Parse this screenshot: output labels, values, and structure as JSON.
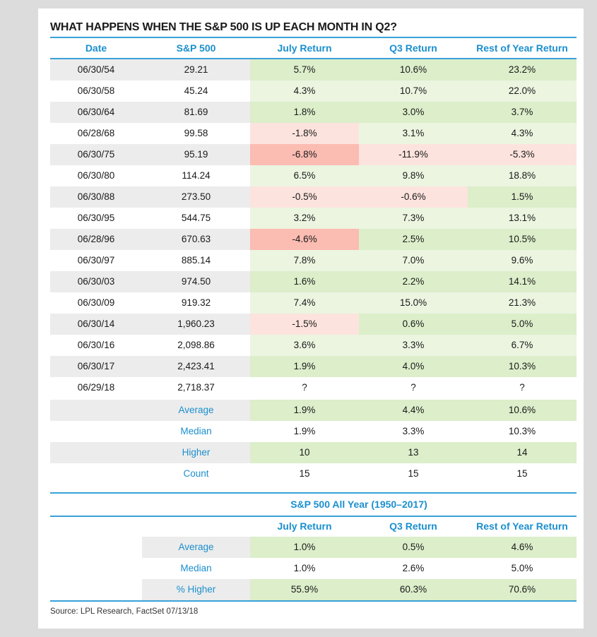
{
  "title": "WHAT HAPPENS WHEN THE S&P 500 IS UP EACH MONTH IN Q2?",
  "headers": [
    "Date",
    "S&P 500",
    "July Return",
    "Q3 Return",
    "Rest of Year Return"
  ],
  "rows": [
    {
      "date": "06/30/54",
      "spx": "29.21",
      "july": "5.7%",
      "q3": "10.6%",
      "roy": "23.2%"
    },
    {
      "date": "06/30/58",
      "spx": "45.24",
      "july": "4.3%",
      "q3": "10.7%",
      "roy": "22.0%"
    },
    {
      "date": "06/30/64",
      "spx": "81.69",
      "july": "1.8%",
      "q3": "3.0%",
      "roy": "3.7%"
    },
    {
      "date": "06/28/68",
      "spx": "99.58",
      "july": "-1.8%",
      "q3": "3.1%",
      "roy": "4.3%"
    },
    {
      "date": "06/30/75",
      "spx": "95.19",
      "july": "-6.8%",
      "q3": "-11.9%",
      "roy": "-5.3%"
    },
    {
      "date": "06/30/80",
      "spx": "114.24",
      "july": "6.5%",
      "q3": "9.8%",
      "roy": "18.8%"
    },
    {
      "date": "06/30/88",
      "spx": "273.50",
      "july": "-0.5%",
      "q3": "-0.6%",
      "roy": "1.5%"
    },
    {
      "date": "06/30/95",
      "spx": "544.75",
      "july": "3.2%",
      "q3": "7.3%",
      "roy": "13.1%"
    },
    {
      "date": "06/28/96",
      "spx": "670.63",
      "july": "-4.6%",
      "q3": "2.5%",
      "roy": "10.5%"
    },
    {
      "date": "06/30/97",
      "spx": "885.14",
      "july": "7.8%",
      "q3": "7.0%",
      "roy": "9.6%"
    },
    {
      "date": "06/30/03",
      "spx": "974.50",
      "july": "1.6%",
      "q3": "2.2%",
      "roy": "14.1%"
    },
    {
      "date": "06/30/09",
      "spx": "919.32",
      "july": "7.4%",
      "q3": "15.0%",
      "roy": "21.3%"
    },
    {
      "date": "06/30/14",
      "spx": "1,960.23",
      "july": "-1.5%",
      "q3": "0.6%",
      "roy": "5.0%"
    },
    {
      "date": "06/30/16",
      "spx": "2,098.86",
      "july": "3.6%",
      "q3": "3.3%",
      "roy": "6.7%"
    },
    {
      "date": "06/30/17",
      "spx": "2,423.41",
      "july": "1.9%",
      "q3": "4.0%",
      "roy": "10.3%"
    },
    {
      "date": "06/29/18",
      "spx": "2,718.37",
      "july": "?",
      "q3": "?",
      "roy": "?"
    }
  ],
  "stats": [
    {
      "label": "Average",
      "july": "1.9%",
      "q3": "4.4%",
      "roy": "10.6%"
    },
    {
      "label": "Median",
      "july": "1.9%",
      "q3": "3.3%",
      "roy": "10.3%"
    },
    {
      "label": "Higher",
      "july": "10",
      "q3": "13",
      "roy": "14"
    },
    {
      "label": "Count",
      "july": "15",
      "q3": "15",
      "roy": "15"
    }
  ],
  "all_year": {
    "title": "S&P 500 All Year (1950–2017)",
    "headers": [
      "July Return",
      "Q3 Return",
      "Rest of Year Return"
    ],
    "rows": [
      {
        "label": "Average",
        "july": "1.0%",
        "q3": "0.5%",
        "roy": "4.6%"
      },
      {
        "label": "Median",
        "july": "1.0%",
        "q3": "2.6%",
        "roy": "5.0%"
      },
      {
        "label": "% Higher",
        "july": "55.9%",
        "q3": "60.3%",
        "roy": "70.6%"
      }
    ]
  },
  "source": "Source: LPL Research, FactSet  07/13/18",
  "colors": {
    "accent": "#1b8fce",
    "positive": "#dceeca",
    "negative": "#fbbcb2",
    "negative_light": "#fde3de",
    "neutral_gray": "#ececec"
  },
  "chart_data": {
    "type": "table",
    "title": "WHAT HAPPENS WHEN THE S&P 500 IS UP EACH MONTH IN Q2?",
    "columns": [
      "Date",
      "S&P 500",
      "July Return",
      "Q3 Return",
      "Rest of Year Return"
    ],
    "rows": [
      [
        "06/30/54",
        29.21,
        5.7,
        10.6,
        23.2
      ],
      [
        "06/30/58",
        45.24,
        4.3,
        10.7,
        22.0
      ],
      [
        "06/30/64",
        81.69,
        1.8,
        3.0,
        3.7
      ],
      [
        "06/28/68",
        99.58,
        -1.8,
        3.1,
        4.3
      ],
      [
        "06/30/75",
        95.19,
        -6.8,
        -11.9,
        -5.3
      ],
      [
        "06/30/80",
        114.24,
        6.5,
        9.8,
        18.8
      ],
      [
        "06/30/88",
        273.5,
        -0.5,
        -0.6,
        1.5
      ],
      [
        "06/30/95",
        544.75,
        3.2,
        7.3,
        13.1
      ],
      [
        "06/28/96",
        670.63,
        -4.6,
        2.5,
        10.5
      ],
      [
        "06/30/97",
        885.14,
        7.8,
        7.0,
        9.6
      ],
      [
        "06/30/03",
        974.5,
        1.6,
        2.2,
        14.1
      ],
      [
        "06/30/09",
        919.32,
        7.4,
        15.0,
        21.3
      ],
      [
        "06/30/14",
        1960.23,
        -1.5,
        0.6,
        5.0
      ],
      [
        "06/30/16",
        2098.86,
        3.6,
        3.3,
        6.7
      ],
      [
        "06/30/17",
        2423.41,
        1.9,
        4.0,
        10.3
      ],
      [
        "06/29/18",
        2718.37,
        null,
        null,
        null
      ]
    ]
  }
}
